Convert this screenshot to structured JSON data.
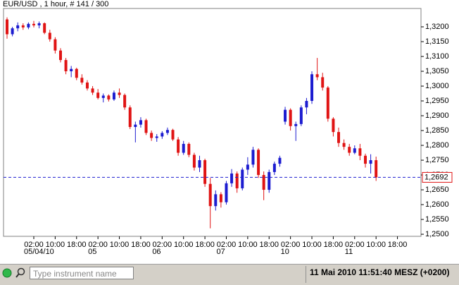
{
  "chart_data": {
    "type": "candlestick",
    "title": "EUR/USD , 1 hour, # 141 / 300",
    "up_color": "#1c1cd0",
    "down_color": "#e01414",
    "open": [
      1.3225,
      1.3175,
      1.3195,
      1.3205,
      1.3198,
      1.321,
      1.3205,
      1.3212,
      1.318,
      1.3158,
      1.312,
      1.3088,
      1.305,
      1.3058,
      1.3028,
      1.3012,
      1.2992,
      1.2978,
      1.296,
      1.2968,
      1.2955,
      1.2978,
      1.297,
      1.2928,
      1.2862,
      1.287,
      1.2885,
      1.2842,
      1.2825,
      1.283,
      1.2842,
      1.2852,
      1.282,
      1.2775,
      1.2805,
      1.2768,
      1.2725,
      1.275,
      1.267,
      1.2595,
      1.2635,
      1.2608,
      1.2672,
      1.2705,
      1.2655,
      1.2718,
      1.2735,
      1.2785,
      1.27,
      1.265,
      1.271,
      1.2738,
      1.288,
      1.292,
      1.2865,
      1.2872,
      1.2928,
      1.295,
      1.304,
      1.303,
      1.2995,
      1.289,
      1.2845,
      1.2808,
      1.2795,
      1.2775,
      1.279,
      1.2765,
      1.2738,
      1.275
    ],
    "high": [
      1.3232,
      1.32,
      1.3215,
      1.3212,
      1.3215,
      1.322,
      1.3218,
      1.3215,
      1.319,
      1.3165,
      1.3128,
      1.3095,
      1.3068,
      1.3062,
      1.304,
      1.302,
      1.3,
      1.299,
      1.2975,
      1.2972,
      1.2985,
      1.2992,
      1.2975,
      1.2935,
      1.288,
      1.2895,
      1.289,
      1.285,
      1.2838,
      1.2848,
      1.286,
      1.2856,
      1.2828,
      1.2815,
      1.281,
      1.2775,
      1.2765,
      1.2755,
      1.269,
      1.2648,
      1.2642,
      1.268,
      1.272,
      1.2712,
      1.2725,
      1.276,
      1.2795,
      1.279,
      1.2712,
      1.2718,
      1.2745,
      1.2765,
      1.293,
      1.2925,
      1.288,
      1.2935,
      1.296,
      1.305,
      1.3095,
      1.3045,
      1.3,
      1.2895,
      1.286,
      1.282,
      1.2805,
      1.28,
      1.2805,
      1.2772,
      1.277,
      1.2762
    ],
    "low": [
      1.316,
      1.3168,
      1.3185,
      1.319,
      1.3192,
      1.3198,
      1.3195,
      1.3175,
      1.315,
      1.311,
      1.308,
      1.304,
      1.303,
      1.302,
      1.3005,
      1.2985,
      1.297,
      1.2955,
      1.2945,
      1.2948,
      1.295,
      1.296,
      1.292,
      1.2855,
      1.281,
      1.286,
      1.2835,
      1.2815,
      1.2812,
      1.2822,
      1.2835,
      1.2815,
      1.2765,
      1.2768,
      1.276,
      1.2715,
      1.271,
      1.266,
      1.252,
      1.258,
      1.259,
      1.26,
      1.266,
      1.264,
      1.2648,
      1.27,
      1.2725,
      1.269,
      1.2615,
      1.264,
      1.27,
      1.2728,
      1.287,
      1.285,
      1.2815,
      1.2865,
      1.2905,
      1.294,
      1.302,
      1.2985,
      1.288,
      1.283,
      1.2795,
      1.2785,
      1.2765,
      1.277,
      1.275,
      1.2725,
      1.2705,
      1.268
    ],
    "close": [
      1.3175,
      1.3195,
      1.3205,
      1.3198,
      1.321,
      1.3205,
      1.3212,
      1.318,
      1.3158,
      1.312,
      1.3088,
      1.305,
      1.3058,
      1.3028,
      1.3012,
      1.2992,
      1.2978,
      1.296,
      1.2968,
      1.2955,
      1.2978,
      1.297,
      1.2928,
      1.2862,
      1.287,
      1.2885,
      1.2842,
      1.2825,
      1.283,
      1.2842,
      1.2852,
      1.282,
      1.2775,
      1.2805,
      1.2768,
      1.2725,
      1.275,
      1.267,
      1.2595,
      1.2635,
      1.2608,
      1.2672,
      1.2705,
      1.2655,
      1.2718,
      1.2735,
      1.2785,
      1.27,
      1.265,
      1.271,
      1.2738,
      1.2758,
      1.292,
      1.2865,
      1.2872,
      1.2928,
      1.295,
      1.304,
      1.303,
      1.2995,
      1.289,
      1.2845,
      1.2808,
      1.2795,
      1.2775,
      1.279,
      1.2765,
      1.2738,
      1.275,
      1.2692
    ],
    "xlim": [
      -0.66,
      77.4
    ],
    "xticks": [
      {
        "value": 5,
        "label": "02:00"
      },
      {
        "value": 9,
        "label": "10:00"
      },
      {
        "value": 13,
        "label": "18:00"
      },
      {
        "value": 17,
        "label": "02:00"
      },
      {
        "value": 21,
        "label": "10:00"
      },
      {
        "value": 25,
        "label": "18:00"
      },
      {
        "value": 29,
        "label": "02:00"
      },
      {
        "value": 33,
        "label": "10:00"
      },
      {
        "value": 37,
        "label": "18:00"
      },
      {
        "value": 41,
        "label": "02:00"
      },
      {
        "value": 45,
        "label": "10:00"
      },
      {
        "value": 49,
        "label": "18:00"
      },
      {
        "value": 53,
        "label": "02:00"
      },
      {
        "value": 57,
        "label": "10:00"
      },
      {
        "value": 61,
        "label": "18:00"
      },
      {
        "value": 65,
        "label": "02:00"
      },
      {
        "value": 69,
        "label": "10:00"
      },
      {
        "value": 73,
        "label": "18:00"
      }
    ],
    "date_labels": [
      {
        "value": 5,
        "label": "05/04/10"
      },
      {
        "value": 17,
        "label": "05"
      },
      {
        "value": 29,
        "label": "06"
      },
      {
        "value": 41,
        "label": "07"
      },
      {
        "value": 53,
        "label": "10"
      },
      {
        "value": 65,
        "label": "11"
      }
    ],
    "ylim": [
      1.2493,
      1.3262
    ],
    "yticks": [
      {
        "value": 1.25,
        "label": "1,2500"
      },
      {
        "value": 1.255,
        "label": "1,2550"
      },
      {
        "value": 1.26,
        "label": "1,2600"
      },
      {
        "value": 1.265,
        "label": "1,2650"
      },
      {
        "value": 1.27,
        "label": "1,2700"
      },
      {
        "value": 1.275,
        "label": "1,2750"
      },
      {
        "value": 1.28,
        "label": "1,2800"
      },
      {
        "value": 1.285,
        "label": "1,2850"
      },
      {
        "value": 1.29,
        "label": "1,2900"
      },
      {
        "value": 1.295,
        "label": "1,2950"
      },
      {
        "value": 1.3,
        "label": "1,3000"
      },
      {
        "value": 1.305,
        "label": "1,3050"
      },
      {
        "value": 1.31,
        "label": "1,3100"
      },
      {
        "value": 1.315,
        "label": "1,3150"
      },
      {
        "value": 1.32,
        "label": "1,3200"
      }
    ],
    "last_price": {
      "value": 1.2692,
      "label": "1,2692"
    }
  },
  "status_bar": {
    "search_placeholder": "Type instrument name",
    "datetime": "11 Mai 2010 11:51:40",
    "timezone": "MESZ (+0200)"
  }
}
